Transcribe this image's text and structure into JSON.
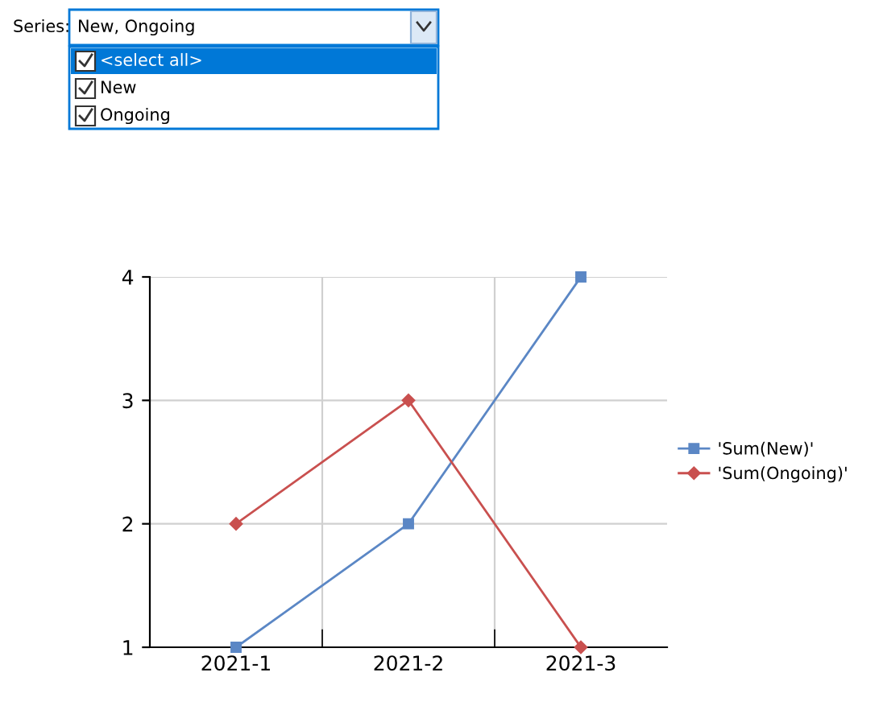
{
  "chart_data": [
    {
      "type": "line",
      "categories": [
        "2021-1",
        "2021-2",
        "2021-3"
      ],
      "series": [
        {
          "name": "'Sum(New)'",
          "color": "#5b87c5",
          "values": [
            1,
            2,
            4
          ],
          "marker": "square"
        },
        {
          "name": "'Sum(Ongoing)'",
          "color": "#c9504f",
          "values": [
            2,
            3,
            1
          ],
          "marker": "diamond"
        }
      ],
      "ylim": [
        1,
        4
      ],
      "yticks": [
        1,
        2,
        3,
        4
      ],
      "grid": true,
      "legend": "right",
      "line_style": "solid"
    },
    {
      "type": "other",
      "annotations": [
        "Series:",
        "New, Ongoing",
        "<select all>",
        "New",
        "Ongoing"
      ]
    }
  ]
}
